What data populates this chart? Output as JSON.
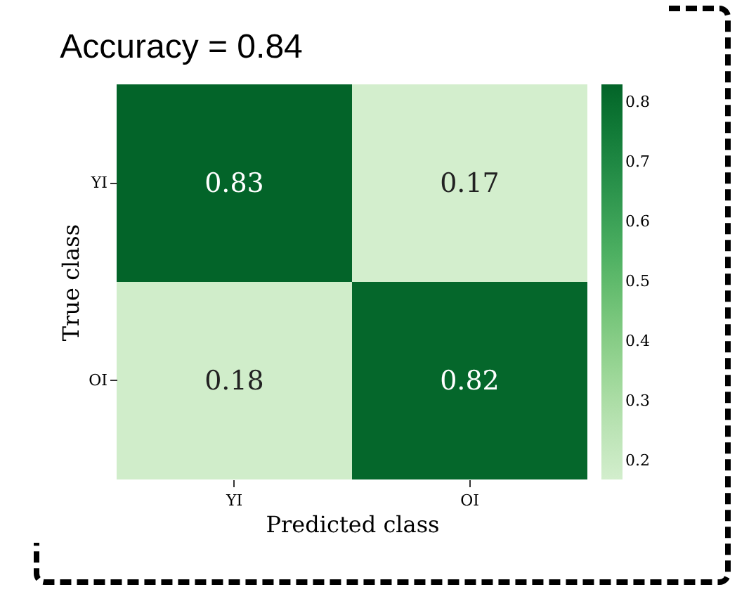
{
  "chart_data": {
    "type": "heatmap",
    "title": "Accuracy = 0.84",
    "xlabel": "Predicted class",
    "ylabel": "True class",
    "categories": [
      "YI",
      "OI"
    ],
    "y_categories": [
      "YI",
      "OI"
    ],
    "cells": [
      [
        0.83,
        0.17
      ],
      [
        0.18,
        0.82
      ]
    ],
    "data_labels": true,
    "clim": [
      0.17,
      0.83
    ],
    "cticks": [
      0.2,
      0.3,
      0.4,
      0.5,
      0.6,
      0.7,
      0.8
    ]
  }
}
